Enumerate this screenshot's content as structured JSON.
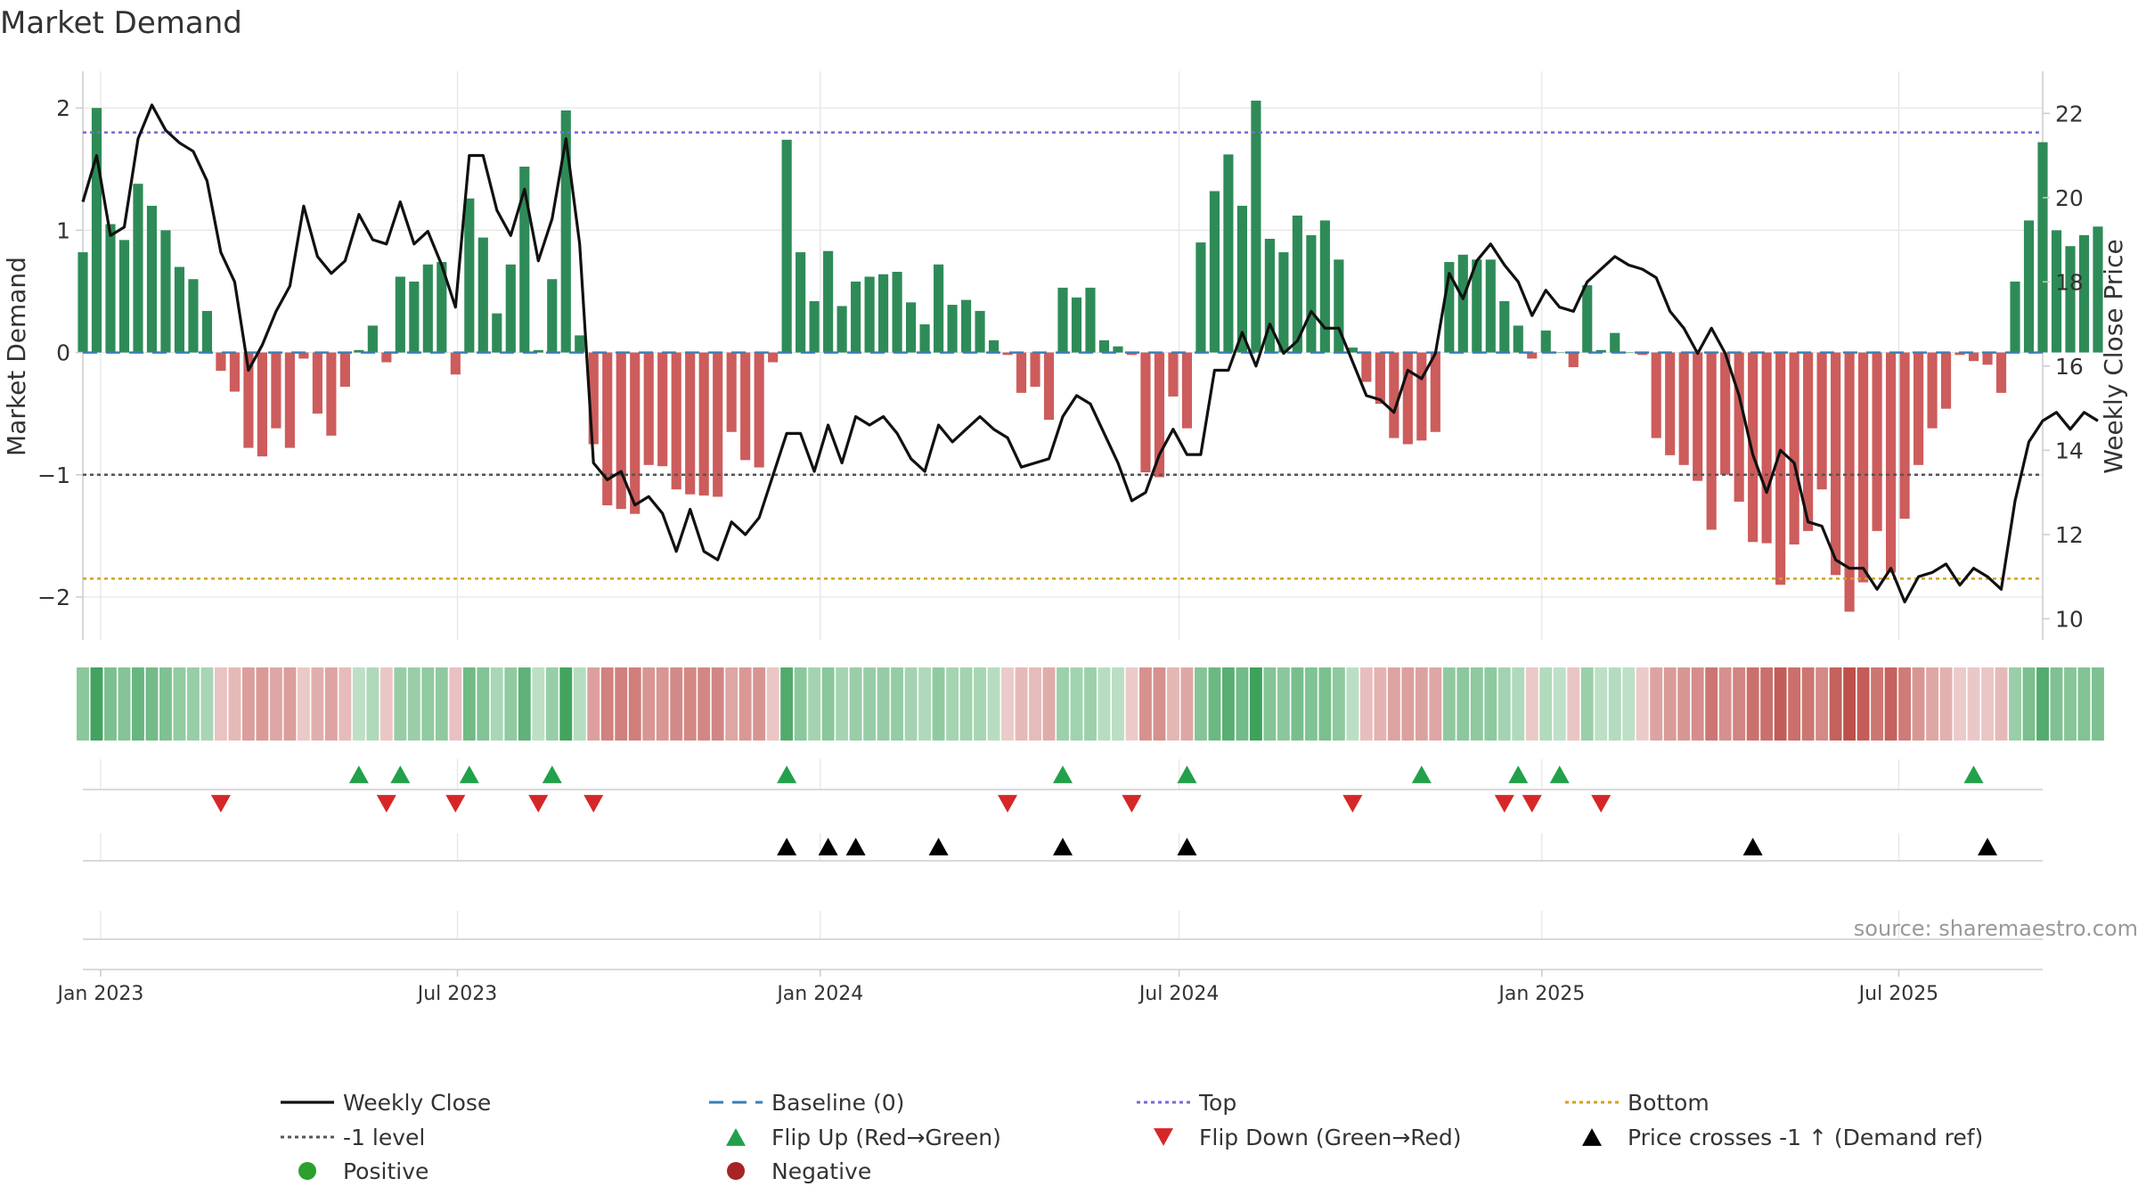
{
  "chart_data": {
    "type": "bar",
    "title": "Market Demand",
    "ylabel_left": "Market Demand",
    "ylabel_right": "Weekly Close Price",
    "ylim_left": [
      -2.35,
      2.3
    ],
    "ylim_right": [
      9.5,
      23.0
    ],
    "yticks_left": [
      -2,
      -1,
      0,
      1,
      2
    ],
    "yticks_left_labels": [
      "−2",
      "−1",
      "0",
      "1",
      "2"
    ],
    "yticks_right": [
      10,
      12,
      14,
      16,
      18,
      20,
      22
    ],
    "x_start": "2022-12-23",
    "x_end": "2025-09-12",
    "x_ticks": [
      {
        "date": "2023-01-01",
        "label": "Jan 2023"
      },
      {
        "date": "2023-07-01",
        "label": "Jul 2023"
      },
      {
        "date": "2024-01-01",
        "label": "Jan 2024"
      },
      {
        "date": "2024-07-01",
        "label": "Jul 2024"
      },
      {
        "date": "2025-01-01",
        "label": "Jan 2025"
      },
      {
        "date": "2025-07-01",
        "label": "Jul 2025"
      }
    ],
    "week_start": "2022-12-23",
    "demand": [
      0.82,
      2.0,
      1.05,
      0.92,
      1.38,
      1.2,
      1.0,
      0.7,
      0.6,
      0.34,
      -0.15,
      -0.32,
      -0.78,
      -0.85,
      -0.62,
      -0.78,
      -0.05,
      -0.5,
      -0.68,
      -0.28,
      0.02,
      0.22,
      -0.08,
      0.62,
      0.58,
      0.72,
      0.74,
      -0.18,
      1.26,
      0.94,
      0.32,
      0.72,
      1.52,
      0.02,
      0.6,
      1.98,
      0.14,
      -0.75,
      -1.25,
      -1.28,
      -1.32,
      -0.92,
      -0.93,
      -1.12,
      -1.16,
      -1.17,
      -1.18,
      -0.65,
      -0.88,
      -0.94,
      -0.08,
      1.74,
      0.82,
      0.42,
      0.83,
      0.38,
      0.58,
      0.62,
      0.64,
      0.66,
      0.41,
      0.23,
      0.72,
      0.39,
      0.43,
      0.34,
      0.1,
      -0.02,
      -0.33,
      -0.28,
      -0.55,
      0.53,
      0.45,
      0.53,
      0.1,
      0.05,
      -0.02,
      -0.98,
      -1.02,
      -0.36,
      -0.62,
      0.9,
      1.32,
      1.62,
      1.2,
      2.06,
      0.93,
      0.82,
      1.12,
      0.96,
      1.08,
      0.76,
      0.04,
      -0.24,
      -0.42,
      -0.7,
      -0.75,
      -0.72,
      -0.65,
      0.74,
      0.8,
      0.76,
      0.76,
      0.42,
      0.22,
      -0.05,
      0.18,
      0.0,
      -0.12,
      0.55,
      0.02,
      0.16,
      0.0,
      -0.02,
      -0.7,
      -0.84,
      -0.92,
      -1.05,
      -1.45,
      -1.0,
      -1.22,
      -1.55,
      -1.56,
      -1.9,
      -1.57,
      -1.46,
      -1.12,
      -1.82,
      -2.12,
      -1.88,
      -1.46,
      -1.8,
      -1.36,
      -0.92,
      -0.62,
      -0.46,
      -0.02,
      -0.07,
      -0.1,
      -0.33,
      0.58,
      1.08,
      1.72,
      1.0,
      0.87,
      0.96,
      1.03
    ],
    "weekly_close": [
      19.9,
      21.0,
      19.1,
      19.3,
      21.4,
      22.2,
      21.6,
      21.3,
      21.1,
      20.4,
      18.7,
      18.0,
      15.9,
      16.5,
      17.3,
      17.9,
      19.8,
      18.6,
      18.2,
      18.5,
      19.6,
      19.0,
      18.9,
      19.9,
      18.9,
      19.2,
      18.4,
      17.4,
      21.0,
      21.0,
      19.7,
      19.1,
      20.2,
      18.5,
      19.5,
      21.4,
      18.9,
      13.7,
      13.3,
      13.5,
      12.7,
      12.9,
      12.5,
      11.6,
      12.6,
      11.6,
      11.4,
      12.3,
      12.0,
      12.4,
      13.4,
      14.4,
      14.4,
      13.5,
      14.6,
      13.7,
      14.8,
      14.6,
      14.8,
      14.4,
      13.8,
      13.5,
      14.6,
      14.2,
      14.5,
      14.8,
      14.5,
      14.3,
      13.6,
      13.7,
      13.8,
      14.8,
      15.3,
      15.1,
      14.4,
      13.7,
      12.8,
      13.0,
      13.9,
      14.5,
      13.9,
      13.9,
      15.9,
      15.9,
      16.8,
      16.0,
      17.0,
      16.3,
      16.6,
      17.3,
      16.9,
      16.9,
      16.1,
      15.3,
      15.2,
      14.9,
      15.9,
      15.7,
      16.3,
      18.2,
      17.6,
      18.5,
      18.9,
      18.4,
      18.0,
      17.2,
      17.8,
      17.4,
      17.3,
      18.0,
      18.3,
      18.6,
      18.4,
      18.3,
      18.1,
      17.3,
      16.9,
      16.3,
      16.9,
      16.3,
      15.3,
      13.9,
      13.0,
      14.0,
      13.7,
      12.3,
      12.2,
      11.4,
      11.2,
      11.2,
      10.7,
      11.2,
      10.4,
      11.0,
      11.1,
      11.3,
      10.8,
      11.2,
      11.0,
      10.7,
      12.8,
      14.2,
      14.7,
      14.9,
      14.5,
      14.9,
      14.7
    ],
    "top_level": 1.8,
    "bottom_level": -1.85,
    "ref_level": -1.0,
    "baseline": 0,
    "flip_up_weeks": [
      20,
      23,
      28,
      34,
      51,
      71,
      80,
      97,
      104,
      107,
      137
    ],
    "flip_down_weeks": [
      10,
      22,
      27,
      33,
      37,
      67,
      76,
      92,
      103,
      105,
      110
    ],
    "price_cross_weeks": [
      51,
      54,
      56,
      62,
      71,
      80,
      121,
      138
    ],
    "source_text": "source: sharemaestro.com",
    "legend": [
      {
        "label": "Weekly Close",
        "marker": "line-solid",
        "color": "#111111"
      },
      {
        "label": "Baseline (0)",
        "marker": "line-dash",
        "color": "#3a7fb5"
      },
      {
        "label": "Top",
        "marker": "line-dot",
        "color": "#7b68d4"
      },
      {
        "label": "Bottom",
        "marker": "line-dot",
        "color": "#d4a020"
      },
      {
        "label": "-1 level",
        "marker": "line-dot",
        "color": "#555555"
      },
      {
        "label": "Flip Up (Red→Green)",
        "marker": "triangle-up",
        "color": "#22a04a"
      },
      {
        "label": "Flip Down (Green→Red)",
        "marker": "triangle-down",
        "color": "#d62728"
      },
      {
        "label": "Price crosses -1 ↑ (Demand ref)",
        "marker": "triangle-up",
        "color": "#000000"
      },
      {
        "label": "Positive",
        "marker": "circle",
        "color": "#2ca02c"
      },
      {
        "label": "Negative",
        "marker": "circle",
        "color": "#a82323"
      }
    ],
    "colors": {
      "positive_bar": "#2e8b57",
      "negative_bar": "#cd5c5c",
      "top_line": "#7b68d4",
      "bottom_line": "#d4a020",
      "ref_line": "#555555",
      "baseline": "#3a7fb5",
      "price_line": "#111111",
      "grid": "#e6e6e6",
      "axis": "#cccccc",
      "tick_text": "#333333",
      "source_text": "#999999"
    }
  }
}
